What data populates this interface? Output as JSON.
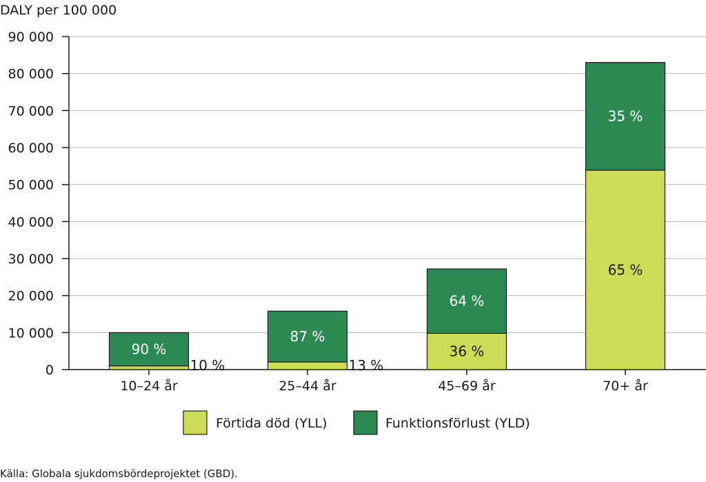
{
  "chart_data": {
    "type": "bar",
    "stacked": true,
    "ylabel": "DALY per 100 000",
    "ylim": [
      0,
      90000
    ],
    "yticks": [
      0,
      10000,
      20000,
      30000,
      40000,
      50000,
      60000,
      70000,
      80000,
      90000
    ],
    "ytick_labels": [
      "0",
      "10 000",
      "20 000",
      "30 000",
      "40 000",
      "50 000",
      "60 000",
      "70 000",
      "80 000",
      "90 000"
    ],
    "grid": true,
    "categories": [
      "10–24 år",
      "25–44 år",
      "45–69 år",
      "70+ år"
    ],
    "series": [
      {
        "name": "Förtida död (YLL)",
        "color": "#cddc56",
        "values": [
          1000,
          2050,
          9800,
          53900
        ],
        "labels": [
          "10 %",
          "13 %",
          "36 %",
          "65 %"
        ],
        "label_color": "#1a1a1a"
      },
      {
        "name": "Funktionsförlust (YLD)",
        "color": "#2a8a52",
        "values": [
          9000,
          13750,
          17400,
          29100
        ],
        "labels": [
          "90 %",
          "87 %",
          "64 %",
          "35 %"
        ],
        "label_color": "#ffffff"
      }
    ],
    "legend_position": "bottom-center",
    "source": "Källa: Globala sjukdomsbördeprojektet (GBD)."
  }
}
